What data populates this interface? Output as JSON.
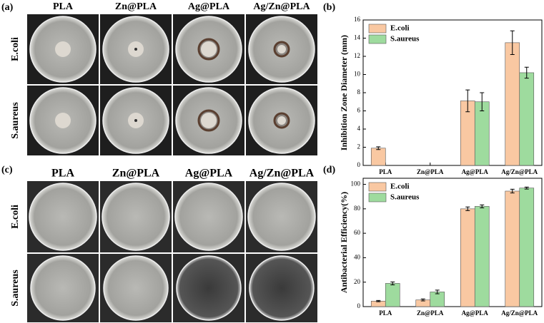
{
  "photo_panels": [
    {
      "label": "(a)",
      "columns": [
        "PLA",
        "Zn@PLA",
        "Ag@PLA",
        "Ag/Zn@PLA"
      ],
      "rows": [
        "E.coli",
        "S.aureus"
      ]
    },
    {
      "label": "(c)",
      "columns": [
        "PLA",
        "Zn@PLA",
        "Ag@PLA",
        "Ag/Zn@PLA"
      ],
      "rows": [
        "E.coli",
        "S.aureus"
      ]
    }
  ],
  "chart_data": [
    {
      "type": "bar",
      "panel_label": "(b)",
      "y_label": "Inhibition Zone Diameter (mm)",
      "categories": [
        "PLA",
        "Zn@PLA",
        "Ag@PLA",
        "Ag/Zn@PLA"
      ],
      "series": [
        {
          "name": "E.coli",
          "color": "#f9c8a2",
          "values": [
            1.9,
            0,
            7.1,
            13.5
          ],
          "errors": [
            0.15,
            0,
            1.2,
            1.3
          ]
        },
        {
          "name": "S.aureus",
          "color": "#9edb9e",
          "values": [
            0,
            0,
            7.0,
            10.2
          ],
          "errors": [
            0,
            0,
            1.0,
            0.6
          ]
        }
      ],
      "ylim": [
        0,
        16
      ],
      "yticks": [
        0,
        2,
        4,
        6,
        8,
        10,
        12,
        14,
        16
      ],
      "legend": "top-left"
    },
    {
      "type": "bar",
      "panel_label": "(d)",
      "y_label": "Antibacterial Efficiency(%)",
      "categories": [
        "PLA",
        "Zn@PLA",
        "Ag@PLA",
        "Ag/Zn@PLA"
      ],
      "series": [
        {
          "name": "E.coli",
          "color": "#f9c8a2",
          "values": [
            4.5,
            5.5,
            80,
            94.5
          ],
          "errors": [
            0.5,
            0.8,
            1.5,
            1.5
          ]
        },
        {
          "name": "S.aureus",
          "color": "#9edb9e",
          "values": [
            19,
            12,
            82,
            97
          ],
          "errors": [
            1.2,
            1.5,
            1.2,
            0.8
          ]
        }
      ],
      "ylim": [
        0,
        105
      ],
      "yticks": [
        0,
        20,
        40,
        60,
        80,
        100
      ],
      "legend": "top-left"
    }
  ]
}
